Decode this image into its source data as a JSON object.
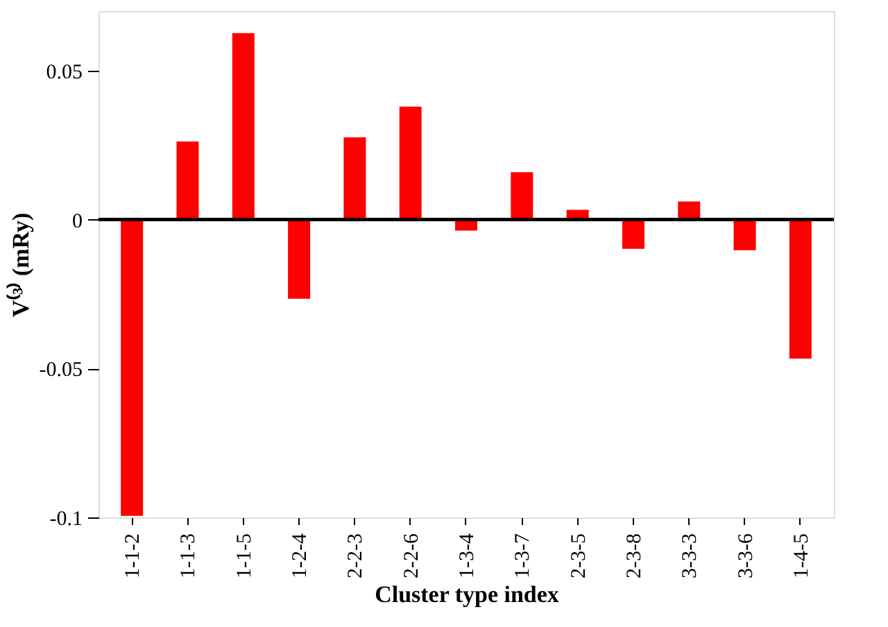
{
  "chart_data": {
    "type": "bar",
    "xlabel": "Cluster type index",
    "ylabel": "V⁽³⁾ (mRy)",
    "categories": [
      "1-1-2",
      "1-1-3",
      "1-1-5",
      "1-2-4",
      "2-2-3",
      "2-2-6",
      "1-3-4",
      "1-3-7",
      "2-3-5",
      "2-3-8",
      "3-3-3",
      "3-3-6",
      "1-4-5"
    ],
    "values": [
      -0.0995,
      0.0262,
      0.0626,
      -0.0266,
      0.0276,
      0.0379,
      -0.0037,
      0.0159,
      0.0033,
      -0.0098,
      0.0061,
      -0.0103,
      -0.0467
    ],
    "color": "#ff0000",
    "ylim": [
      -0.1,
      0.07
    ],
    "yticks": [
      -0.1,
      -0.05,
      0,
      0.05
    ],
    "grid": false,
    "ref_lines": [
      {
        "axis": "y",
        "value": 0,
        "color": "#000000"
      }
    ]
  }
}
